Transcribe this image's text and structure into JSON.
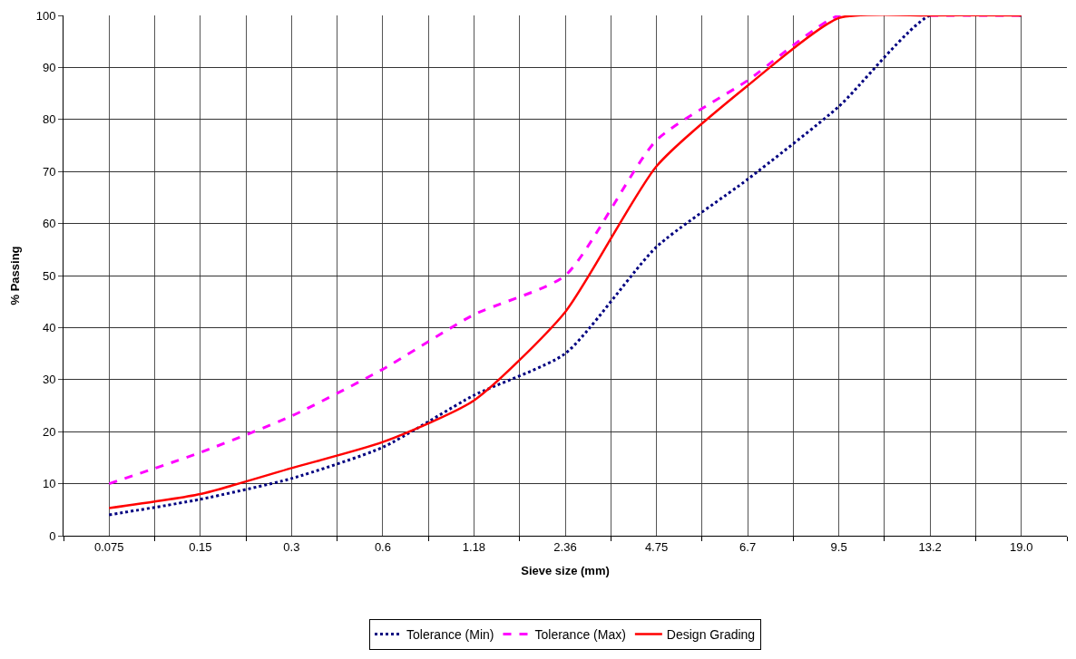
{
  "chart_data": {
    "type": "line",
    "xlabel": "Sieve size (mm)",
    "ylabel": "% Passing",
    "categories": [
      "0.075",
      "0.15",
      "0.3",
      "0.6",
      "1.18",
      "2.36",
      "4.75",
      "6.7",
      "9.5",
      "13.2",
      "19.0"
    ],
    "series": [
      {
        "name": "Tolerance (Min)",
        "color": "#000080",
        "line_style": "dotted",
        "values": [
          4,
          7,
          11,
          17,
          27,
          35,
          55.5,
          68.5,
          82.5,
          100,
          100
        ]
      },
      {
        "name": "Tolerance (Max)",
        "color": "#ff00ff",
        "line_style": "dashed",
        "values": [
          10,
          16,
          23,
          32,
          42.5,
          50,
          76,
          87.5,
          100,
          100,
          100
        ]
      },
      {
        "name": "Design Grading",
        "color": "#ff0000",
        "line_style": "solid",
        "values": [
          5.3,
          8,
          13,
          18,
          26,
          43,
          71,
          86.5,
          99.5,
          100,
          100
        ]
      }
    ],
    "ylim": [
      0,
      100
    ],
    "yticks": [
      0,
      10,
      20,
      30,
      40,
      50,
      60,
      70,
      80,
      90,
      100
    ],
    "grid": true,
    "legend": "bottom",
    "marker": "none"
  }
}
